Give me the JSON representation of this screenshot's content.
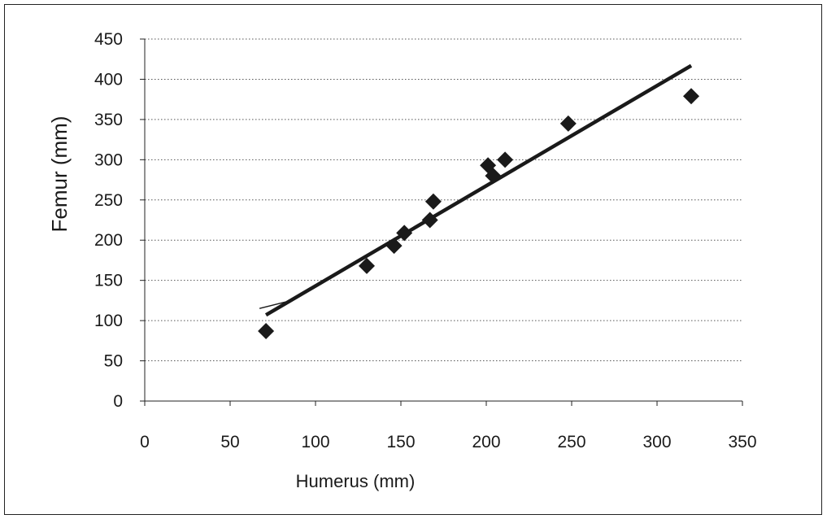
{
  "chart_data": {
    "type": "scatter",
    "title": "",
    "xlabel": "Humerus (mm)",
    "ylabel": "Femur (mm)",
    "xlim": [
      0,
      350
    ],
    "ylim": [
      0,
      450
    ],
    "x_ticks": [
      "0",
      "50",
      "100",
      "150",
      "200",
      "250",
      "300",
      "350"
    ],
    "y_ticks": [
      "0",
      "50",
      "100",
      "150",
      "200",
      "250",
      "300",
      "350",
      "400",
      "450"
    ],
    "grid": "horizontal dotted",
    "series": [
      {
        "marker": "diamond",
        "color": "#1a1a1a",
        "points": [
          {
            "x": 71,
            "y": 87
          },
          {
            "x": 130,
            "y": 168
          },
          {
            "x": 146,
            "y": 193
          },
          {
            "x": 152,
            "y": 209
          },
          {
            "x": 167,
            "y": 225
          },
          {
            "x": 169,
            "y": 248
          },
          {
            "x": 201,
            "y": 293
          },
          {
            "x": 204,
            "y": 280
          },
          {
            "x": 211,
            "y": 300
          },
          {
            "x": 248,
            "y": 345
          },
          {
            "x": 320,
            "y": 379
          }
        ]
      }
    ],
    "trendline": {
      "x1": 71,
      "y1": 107,
      "x2": 320,
      "y2": 417,
      "color": "#1a1a1a"
    }
  }
}
